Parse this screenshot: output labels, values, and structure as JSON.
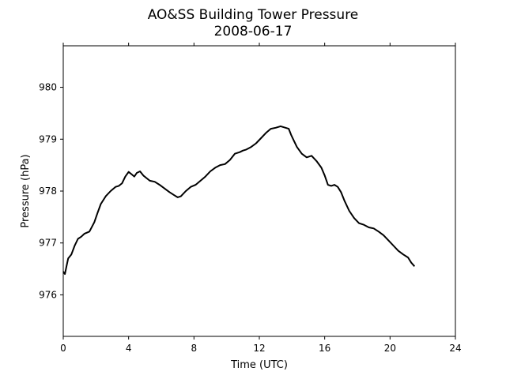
{
  "chart_data": {
    "type": "line",
    "title": "AO&SS Building Tower Pressure",
    "subtitle": "2008-06-17",
    "xlabel": "Time (UTC)",
    "ylabel": "Pressure (hPa)",
    "xlim": [
      0,
      24
    ],
    "ylim": [
      975.2,
      980.8
    ],
    "xticks": [
      0,
      4,
      8,
      12,
      16,
      20,
      24
    ],
    "yticks": [
      976,
      977,
      978,
      979,
      980
    ],
    "grid": false,
    "line_color": "#000000",
    "series": [
      {
        "x": [
          0.0,
          0.1,
          0.2,
          0.3,
          0.5,
          0.7,
          0.9,
          1.1,
          1.3,
          1.6,
          1.9,
          2.1,
          2.3,
          2.6,
          2.9,
          3.2,
          3.4,
          3.6,
          3.8,
          4.0,
          4.2,
          4.35,
          4.5,
          4.7,
          4.9,
          5.1,
          5.3,
          5.6,
          5.9,
          6.2,
          6.5,
          6.8,
          7.0,
          7.2,
          7.5,
          7.8,
          8.1,
          8.4,
          8.7,
          9.0,
          9.3,
          9.6,
          9.9,
          10.2,
          10.5,
          10.8,
          11.0,
          11.2,
          11.5,
          11.8,
          12.1,
          12.4,
          12.7,
          13.0,
          13.3,
          13.6,
          13.8,
          13.95,
          14.1,
          14.3,
          14.6,
          14.9,
          15.2,
          15.5,
          15.8,
          16.0,
          16.2,
          16.4,
          16.6,
          16.8,
          17.0,
          17.2,
          17.5,
          17.8,
          18.1,
          18.4,
          18.7,
          19.0,
          19.3,
          19.6,
          19.9,
          20.2,
          20.5,
          20.8,
          21.1,
          21.3,
          21.5
        ],
        "y": [
          976.45,
          976.4,
          976.55,
          976.7,
          976.78,
          976.95,
          977.08,
          977.12,
          977.18,
          977.22,
          977.4,
          977.58,
          977.75,
          977.9,
          978.0,
          978.08,
          978.1,
          978.15,
          978.28,
          978.37,
          978.32,
          978.28,
          978.35,
          978.38,
          978.3,
          978.25,
          978.2,
          978.18,
          978.12,
          978.05,
          977.98,
          977.92,
          977.88,
          977.9,
          978.0,
          978.08,
          978.12,
          978.2,
          978.28,
          978.38,
          978.45,
          978.5,
          978.52,
          978.6,
          978.72,
          978.75,
          978.78,
          978.8,
          978.85,
          978.92,
          979.02,
          979.12,
          979.2,
          979.22,
          979.25,
          979.22,
          979.2,
          979.08,
          978.98,
          978.85,
          978.72,
          978.65,
          978.68,
          978.58,
          978.45,
          978.3,
          978.12,
          978.1,
          978.12,
          978.08,
          977.98,
          977.82,
          977.62,
          977.48,
          977.38,
          977.35,
          977.3,
          977.28,
          977.22,
          977.15,
          977.05,
          976.95,
          976.85,
          976.78,
          976.72,
          976.62,
          976.55
        ]
      }
    ]
  }
}
